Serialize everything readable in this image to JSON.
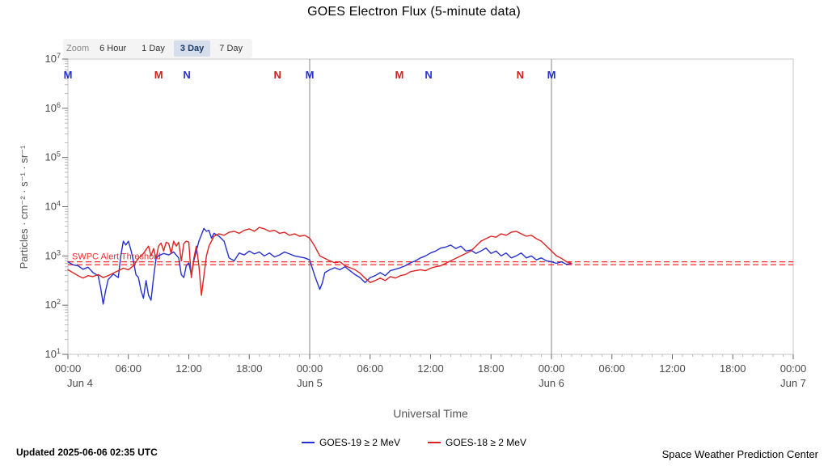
{
  "title": "GOES Electron Flux (5-minute data)",
  "zoom": {
    "label": "Zoom",
    "options": [
      {
        "label": "6 Hour",
        "selected": false
      },
      {
        "label": "1 Day",
        "selected": false
      },
      {
        "label": "3 Day",
        "selected": true
      },
      {
        "label": "7 Day",
        "selected": false
      }
    ]
  },
  "footer": {
    "updated": "Updated 2025-06-06 02:35 UTC",
    "source": "Space Weather Prediction Center"
  },
  "chart_data": {
    "type": "line",
    "title": "GOES Electron Flux (5-minute data)",
    "xlabel": "Universal Time",
    "ylabel": "Particles · cm⁻² · s⁻¹ · sr⁻¹",
    "x_range_hours": [
      0,
      72
    ],
    "x_start": "Jun 4 00:00 UTC",
    "y_scale": "log10",
    "y_exponent_range": [
      1,
      7
    ],
    "x_ticks": [
      {
        "hour": 0,
        "label": "00:00",
        "day": "Jun 4"
      },
      {
        "hour": 6,
        "label": "06:00"
      },
      {
        "hour": 12,
        "label": "12:00"
      },
      {
        "hour": 18,
        "label": "18:00"
      },
      {
        "hour": 24,
        "label": "00:00",
        "day": "Jun 5"
      },
      {
        "hour": 30,
        "label": "06:00"
      },
      {
        "hour": 36,
        "label": "12:00"
      },
      {
        "hour": 42,
        "label": "18:00"
      },
      {
        "hour": 48,
        "label": "00:00",
        "day": "Jun 6"
      },
      {
        "hour": 54,
        "label": "06:00"
      },
      {
        "hour": 60,
        "label": "12:00"
      },
      {
        "hour": 66,
        "label": "18:00"
      },
      {
        "hour": 72,
        "label": "00:00",
        "day": "Jun 7"
      }
    ],
    "day_boundaries_hours": [
      24,
      48
    ],
    "event_markers": [
      {
        "hour": 0,
        "label": "M",
        "color": "#2530d0"
      },
      {
        "hour": 9,
        "label": "M",
        "color": "#d02020"
      },
      {
        "hour": 11.8,
        "label": "N",
        "color": "#2530d0"
      },
      {
        "hour": 20.8,
        "label": "N",
        "color": "#d02020"
      },
      {
        "hour": 24,
        "label": "M",
        "color": "#2530d0"
      },
      {
        "hour": 32.9,
        "label": "M",
        "color": "#d02020"
      },
      {
        "hour": 35.8,
        "label": "N",
        "color": "#2530d0"
      },
      {
        "hour": 44.9,
        "label": "N",
        "color": "#d02020"
      },
      {
        "hour": 48,
        "label": "M",
        "color": "#2530d0"
      }
    ],
    "threshold": {
      "label": "SWPC Alert Threshold",
      "color": "#ff2a2a",
      "lines_log10": [
        2.88,
        2.82
      ]
    },
    "series": [
      {
        "name": "GOES-19 ≥ 2 MeV",
        "color": "#2530d0",
        "points": [
          [
            0,
            2.88
          ],
          [
            0.5,
            2.82
          ],
          [
            1,
            2.8
          ],
          [
            1.5,
            2.73
          ],
          [
            2,
            2.77
          ],
          [
            2.5,
            2.66
          ],
          [
            3,
            2.6
          ],
          [
            3.25,
            2.35
          ],
          [
            3.5,
            2.02
          ],
          [
            3.75,
            2.3
          ],
          [
            4,
            2.52
          ],
          [
            4.5,
            2.63
          ],
          [
            5,
            2.56
          ],
          [
            5.25,
            3.0
          ],
          [
            5.5,
            3.3
          ],
          [
            5.75,
            3.22
          ],
          [
            6,
            3.3
          ],
          [
            6.25,
            3.12
          ],
          [
            6.5,
            2.9
          ],
          [
            6.75,
            2.62
          ],
          [
            7,
            2.56
          ],
          [
            7.25,
            2.3
          ],
          [
            7.5,
            2.14
          ],
          [
            7.75,
            2.5
          ],
          [
            8,
            2.2
          ],
          [
            8.25,
            2.1
          ],
          [
            8.5,
            2.56
          ],
          [
            8.75,
            2.95
          ],
          [
            9,
            3.0
          ],
          [
            9.5,
            3.05
          ],
          [
            10,
            3.02
          ],
          [
            10.5,
            3.08
          ],
          [
            11,
            2.96
          ],
          [
            11.25,
            2.62
          ],
          [
            11.5,
            2.56
          ],
          [
            11.75,
            2.8
          ],
          [
            12,
            2.86
          ],
          [
            12.25,
            2.62
          ],
          [
            12.5,
            2.9
          ],
          [
            12.75,
            3.1
          ],
          [
            13,
            3.3
          ],
          [
            13.5,
            3.56
          ],
          [
            13.75,
            3.5
          ],
          [
            14,
            3.52
          ],
          [
            14.25,
            3.36
          ],
          [
            14.5,
            3.46
          ],
          [
            15,
            3.4
          ],
          [
            15.5,
            3.3
          ],
          [
            16,
            2.96
          ],
          [
            16.5,
            2.9
          ],
          [
            17,
            3.06
          ],
          [
            17.5,
            3.02
          ],
          [
            18,
            3.1
          ],
          [
            18.5,
            3.04
          ],
          [
            19,
            3.08
          ],
          [
            19.5,
            3.0
          ],
          [
            20,
            3.06
          ],
          [
            20.5,
            2.98
          ],
          [
            21,
            3.02
          ],
          [
            21.5,
            3.08
          ],
          [
            22,
            3.04
          ],
          [
            22.5,
            3.0
          ],
          [
            23,
            2.98
          ],
          [
            23.5,
            2.96
          ],
          [
            24,
            2.92
          ],
          [
            24.5,
            2.6
          ],
          [
            25,
            2.32
          ],
          [
            25.25,
            2.45
          ],
          [
            25.5,
            2.66
          ],
          [
            26,
            2.72
          ],
          [
            26.5,
            2.76
          ],
          [
            27,
            2.72
          ],
          [
            27.5,
            2.78
          ],
          [
            28,
            2.7
          ],
          [
            28.5,
            2.62
          ],
          [
            29,
            2.56
          ],
          [
            29.5,
            2.46
          ],
          [
            30,
            2.56
          ],
          [
            30.5,
            2.6
          ],
          [
            31,
            2.66
          ],
          [
            31.5,
            2.6
          ],
          [
            32,
            2.7
          ],
          [
            32.5,
            2.73
          ],
          [
            33,
            2.76
          ],
          [
            33.5,
            2.8
          ],
          [
            34,
            2.86
          ],
          [
            34.5,
            2.9
          ],
          [
            35,
            2.96
          ],
          [
            35.5,
            3.0
          ],
          [
            36,
            3.06
          ],
          [
            36.5,
            3.1
          ],
          [
            37,
            3.16
          ],
          [
            37.5,
            3.18
          ],
          [
            38,
            3.22
          ],
          [
            38.5,
            3.15
          ],
          [
            39,
            3.2
          ],
          [
            39.5,
            3.1
          ],
          [
            40,
            3.12
          ],
          [
            40.5,
            3.05
          ],
          [
            41,
            3.1
          ],
          [
            41.5,
            3.16
          ],
          [
            42,
            3.05
          ],
          [
            42.5,
            3.1
          ],
          [
            43,
            3.0
          ],
          [
            43.5,
            3.06
          ],
          [
            44,
            2.96
          ],
          [
            44.5,
            3.0
          ],
          [
            45,
            3.06
          ],
          [
            45.5,
            2.96
          ],
          [
            46,
            3.0
          ],
          [
            46.5,
            2.92
          ],
          [
            47,
            2.96
          ],
          [
            47.5,
            2.9
          ],
          [
            48,
            2.88
          ],
          [
            48.5,
            2.85
          ],
          [
            49,
            2.88
          ],
          [
            49.5,
            2.83
          ],
          [
            50,
            2.85
          ]
        ]
      },
      {
        "name": "GOES-18 ≥ 2 MeV",
        "color": "#dd2222",
        "points": [
          [
            0,
            2.72
          ],
          [
            0.5,
            2.66
          ],
          [
            1,
            2.6
          ],
          [
            1.5,
            2.55
          ],
          [
            2,
            2.6
          ],
          [
            2.5,
            2.58
          ],
          [
            3,
            2.62
          ],
          [
            3.5,
            2.56
          ],
          [
            4,
            2.6
          ],
          [
            4.5,
            2.65
          ],
          [
            5,
            2.7
          ],
          [
            5.5,
            2.75
          ],
          [
            6,
            2.72
          ],
          [
            6.5,
            2.8
          ],
          [
            7,
            2.95
          ],
          [
            7.5,
            3.05
          ],
          [
            8,
            3.2
          ],
          [
            8.25,
            3.0
          ],
          [
            8.5,
            3.15
          ],
          [
            8.75,
            2.95
          ],
          [
            9,
            3.2
          ],
          [
            9.25,
            3.26
          ],
          [
            9.5,
            3.1
          ],
          [
            9.75,
            3.28
          ],
          [
            10,
            3.25
          ],
          [
            10.25,
            3.05
          ],
          [
            10.5,
            3.3
          ],
          [
            10.75,
            3.2
          ],
          [
            11,
            3.28
          ],
          [
            11.25,
            2.9
          ],
          [
            11.5,
            3.25
          ],
          [
            11.75,
            3.3
          ],
          [
            12,
            3.28
          ],
          [
            12.25,
            2.56
          ],
          [
            12.5,
            2.95
          ],
          [
            12.75,
            3.2
          ],
          [
            13,
            2.8
          ],
          [
            13.25,
            2.2
          ],
          [
            13.5,
            2.6
          ],
          [
            13.75,
            3.0
          ],
          [
            14,
            3.2
          ],
          [
            14.5,
            3.4
          ],
          [
            15,
            3.45
          ],
          [
            15.5,
            3.42
          ],
          [
            16,
            3.48
          ],
          [
            16.5,
            3.5
          ],
          [
            17,
            3.46
          ],
          [
            17.5,
            3.52
          ],
          [
            18,
            3.55
          ],
          [
            18.5,
            3.5
          ],
          [
            19,
            3.58
          ],
          [
            19.5,
            3.55
          ],
          [
            20,
            3.5
          ],
          [
            20.5,
            3.52
          ],
          [
            21,
            3.46
          ],
          [
            21.5,
            3.48
          ],
          [
            22,
            3.42
          ],
          [
            22.5,
            3.45
          ],
          [
            23,
            3.4
          ],
          [
            23.5,
            3.42
          ],
          [
            24,
            3.36
          ],
          [
            24.5,
            3.2
          ],
          [
            25,
            3.0
          ],
          [
            25.5,
            2.95
          ],
          [
            26,
            2.9
          ],
          [
            26.5,
            2.86
          ],
          [
            27,
            2.88
          ],
          [
            27.5,
            2.8
          ],
          [
            28,
            2.76
          ],
          [
            28.5,
            2.72
          ],
          [
            29,
            2.65
          ],
          [
            29.5,
            2.55
          ],
          [
            30,
            2.46
          ],
          [
            30.5,
            2.5
          ],
          [
            31,
            2.55
          ],
          [
            31.5,
            2.5
          ],
          [
            32,
            2.58
          ],
          [
            32.5,
            2.55
          ],
          [
            33,
            2.6
          ],
          [
            33.5,
            2.62
          ],
          [
            34,
            2.68
          ],
          [
            34.5,
            2.7
          ],
          [
            35,
            2.72
          ],
          [
            35.5,
            2.7
          ],
          [
            36,
            2.75
          ],
          [
            36.5,
            2.78
          ],
          [
            37,
            2.8
          ],
          [
            37.5,
            2.85
          ],
          [
            38,
            2.9
          ],
          [
            38.5,
            2.95
          ],
          [
            39,
            3.0
          ],
          [
            39.5,
            3.05
          ],
          [
            40,
            3.1
          ],
          [
            40.5,
            3.2
          ],
          [
            41,
            3.3
          ],
          [
            41.5,
            3.35
          ],
          [
            42,
            3.4
          ],
          [
            42.5,
            3.38
          ],
          [
            43,
            3.45
          ],
          [
            43.5,
            3.42
          ],
          [
            44,
            3.48
          ],
          [
            44.5,
            3.5
          ],
          [
            45,
            3.45
          ],
          [
            45.5,
            3.4
          ],
          [
            46,
            3.42
          ],
          [
            46.5,
            3.35
          ],
          [
            47,
            3.3
          ],
          [
            47.5,
            3.2
          ],
          [
            48,
            3.1
          ],
          [
            48.5,
            3.0
          ],
          [
            49,
            2.95
          ],
          [
            49.5,
            2.88
          ],
          [
            50,
            2.85
          ]
        ]
      }
    ],
    "legend_position": "bottom"
  }
}
